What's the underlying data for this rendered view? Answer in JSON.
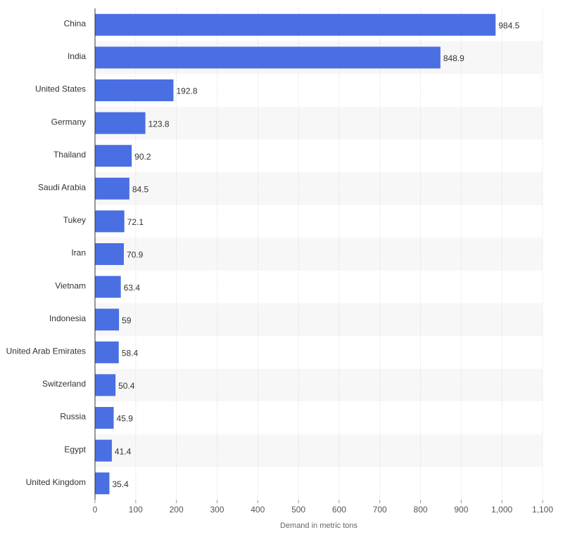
{
  "chart_data": {
    "type": "bar",
    "orientation": "horizontal",
    "categories": [
      "China",
      "India",
      "United States",
      "Germany",
      "Thailand",
      "Saudi Arabia",
      "Tukey",
      "Iran",
      "Vietnam",
      "Indonesia",
      "United Arab Emirates",
      "Switzerland",
      "Russia",
      "Egypt",
      "United Kingdom"
    ],
    "values": [
      984.5,
      848.9,
      192.8,
      123.8,
      90.2,
      84.5,
      72.1,
      70.9,
      63.4,
      59,
      58.4,
      50.4,
      45.9,
      41.4,
      35.4
    ],
    "data_labels": [
      "984.5",
      "848.9",
      "192.8",
      "123.8",
      "90.2",
      "84.5",
      "72.1",
      "70.9",
      "63.4",
      "59",
      "58.4",
      "50.4",
      "45.9",
      "41.4",
      "35.4"
    ],
    "title": "",
    "xlabel": "Demand in metric tons",
    "ylabel": "",
    "xlim": [
      0,
      1100
    ],
    "x_ticks": [
      0,
      100,
      200,
      300,
      400,
      500,
      600,
      700,
      800,
      900,
      1000,
      1100
    ],
    "x_tick_labels": [
      "0",
      "100",
      "200",
      "300",
      "400",
      "500",
      "600",
      "700",
      "800",
      "900",
      "1,000",
      "1,100"
    ],
    "grid": true,
    "legend": "none",
    "bar_color": "#4a6fe3",
    "band_color": "#f7f7f7"
  }
}
